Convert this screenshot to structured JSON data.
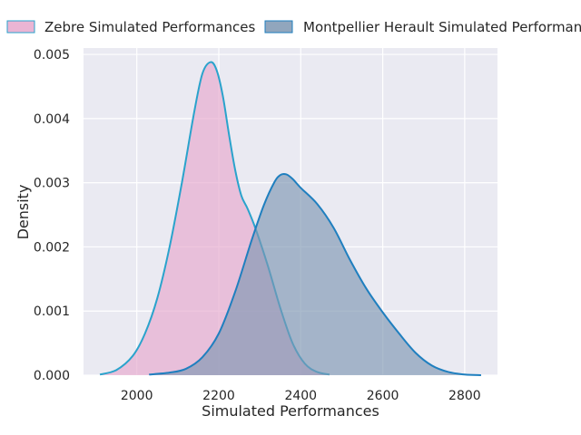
{
  "chart_data": {
    "type": "area",
    "title": "",
    "xlabel": "Simulated Performances",
    "ylabel": "Density",
    "xlim": [
      1870,
      2880
    ],
    "ylim": [
      0,
      0.0051
    ],
    "x_ticks": [
      2000,
      2200,
      2400,
      2600,
      2800
    ],
    "y_ticks": [
      0.0,
      0.001,
      0.002,
      0.003,
      0.004,
      0.005
    ],
    "x_tick_labels": [
      "2000",
      "2200",
      "2400",
      "2600",
      "2800"
    ],
    "y_tick_labels": [
      "0.000",
      "0.001",
      "0.002",
      "0.003",
      "0.004",
      "0.005"
    ],
    "grid": true,
    "legend_position": "top",
    "series": [
      {
        "name": "Zebre Simulated Performances",
        "fill_color": "#e7a8cd",
        "line_color": "#2aa3cc",
        "x": [
          1910,
          1950,
          1990,
          2020,
          2050,
          2080,
          2110,
          2140,
          2160,
          2180,
          2195,
          2210,
          2225,
          2240,
          2255,
          2270,
          2290,
          2320,
          2350,
          2380,
          2410,
          2440,
          2470
        ],
        "y": [
          1e-05,
          8e-05,
          0.0003,
          0.00065,
          0.0012,
          0.002,
          0.003,
          0.0041,
          0.0047,
          0.00488,
          0.00475,
          0.00435,
          0.00375,
          0.0032,
          0.0028,
          0.0026,
          0.00228,
          0.0017,
          0.00105,
          0.0005,
          0.00018,
          5e-05,
          1e-05
        ]
      },
      {
        "name": "Montpellier Herault Simulated Performances",
        "fill_color": "#7e97b2",
        "line_color": "#1f7fbf",
        "x": [
          2030,
          2080,
          2120,
          2160,
          2200,
          2240,
          2280,
          2310,
          2335,
          2350,
          2365,
          2380,
          2400,
          2440,
          2480,
          2520,
          2560,
          2600,
          2640,
          2680,
          2720,
          2760,
          2800,
          2840
        ],
        "y": [
          1e-05,
          4e-05,
          0.0001,
          0.00028,
          0.00065,
          0.0013,
          0.0021,
          0.00265,
          0.003,
          0.00312,
          0.00313,
          0.00306,
          0.00292,
          0.00267,
          0.0023,
          0.0018,
          0.00135,
          0.00098,
          0.00065,
          0.00035,
          0.00015,
          5e-05,
          1e-05,
          0.0
        ]
      }
    ]
  }
}
